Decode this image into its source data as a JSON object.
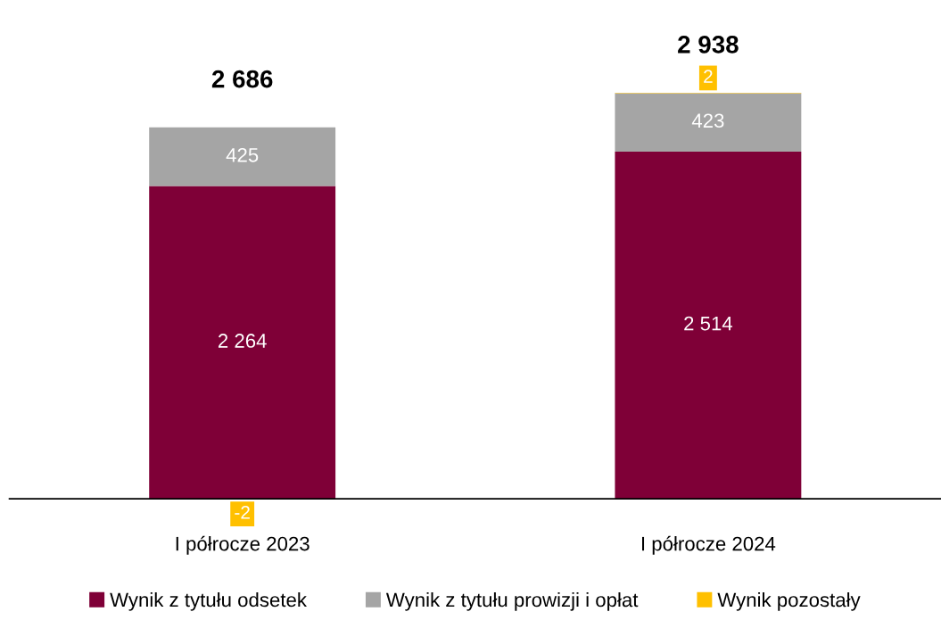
{
  "chart_data": {
    "type": "bar",
    "stacked": true,
    "categories": [
      "I półrocze 2023",
      "I półrocze 2024"
    ],
    "series": [
      {
        "name": "Wynik z tytułu odsetek",
        "color": "#7f0037",
        "values": [
          2264,
          2514
        ],
        "value_labels": [
          "2 264",
          "2 514"
        ]
      },
      {
        "name": "Wynik z tytułu prowizji i opłat",
        "color": "#a5a5a5",
        "values": [
          425,
          423
        ],
        "value_labels": [
          "425",
          "423"
        ]
      },
      {
        "name": "Wynik pozostały",
        "color": "#ffc000",
        "values": [
          -2,
          2
        ],
        "value_labels": [
          "-2",
          "2"
        ]
      }
    ],
    "totals": [
      "2 686",
      "2 938"
    ],
    "legend": "bottom",
    "grid": false
  }
}
